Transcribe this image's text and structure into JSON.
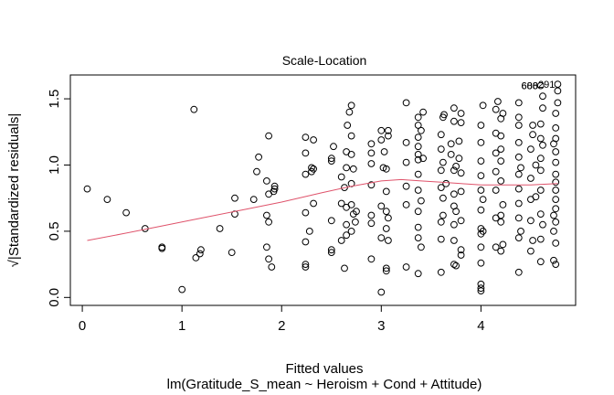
{
  "chart_data": {
    "type": "scatter",
    "title": "Scale-Location",
    "xlabel": "Fitted values",
    "subtitle": "lm(Gratitude_S_mean ~ Heroism + Cond + Attitude)",
    "ylabel": "√|Standardized residuals|",
    "xlim": [
      -0.12,
      4.95
    ],
    "ylim": [
      -0.06,
      1.68
    ],
    "x_ticks": [
      0,
      1,
      2,
      3,
      4
    ],
    "y_ticks": [
      0.0,
      0.5,
      1.0,
      1.5
    ],
    "x_tick_labels": [
      "0",
      "1",
      "2",
      "3",
      "4"
    ],
    "y_tick_labels": [
      "0.0",
      "0.5",
      "1.0",
      "1.5"
    ],
    "grid": false,
    "smoother_color": "#DF536B",
    "point_color": "#000000",
    "smoother": [
      [
        0.05,
        0.43
      ],
      [
        0.4,
        0.48
      ],
      [
        0.8,
        0.54
      ],
      [
        1.2,
        0.6
      ],
      [
        1.6,
        0.66
      ],
      [
        2.0,
        0.72
      ],
      [
        2.4,
        0.79
      ],
      [
        2.7,
        0.84
      ],
      [
        3.0,
        0.88
      ],
      [
        3.2,
        0.89
      ],
      [
        3.4,
        0.88
      ],
      [
        3.6,
        0.87
      ],
      [
        3.8,
        0.86
      ],
      [
        4.0,
        0.85
      ],
      [
        4.2,
        0.85
      ],
      [
        4.5,
        0.85
      ],
      [
        4.77,
        0.86
      ]
    ],
    "outlier_labels": [
      {
        "x": 4.6,
        "y": 1.6,
        "label": "606"
      },
      {
        "x": 4.6,
        "y": 1.6,
        "label": "688"
      },
      {
        "x": 4.77,
        "y": 1.61,
        "label": "291"
      }
    ],
    "points": [
      [
        0.05,
        0.82
      ],
      [
        0.25,
        0.74
      ],
      [
        0.44,
        0.64
      ],
      [
        0.63,
        0.52
      ],
      [
        0.8,
        0.37
      ],
      [
        0.8,
        0.38
      ],
      [
        1.0,
        0.06
      ],
      [
        1.12,
        1.42
      ],
      [
        1.14,
        0.3
      ],
      [
        1.18,
        0.33
      ],
      [
        1.19,
        0.36
      ],
      [
        1.38,
        0.52
      ],
      [
        1.5,
        0.34
      ],
      [
        1.53,
        0.63
      ],
      [
        1.53,
        0.75
      ],
      [
        1.72,
        0.74
      ],
      [
        1.75,
        0.95
      ],
      [
        1.77,
        1.06
      ],
      [
        1.85,
        0.88
      ],
      [
        1.85,
        0.62
      ],
      [
        1.87,
        0.57
      ],
      [
        1.85,
        0.38
      ],
      [
        1.87,
        0.29
      ],
      [
        1.87,
        0.78
      ],
      [
        1.87,
        1.22
      ],
      [
        1.92,
        0.8
      ],
      [
        1.93,
        0.84
      ],
      [
        1.93,
        0.82
      ],
      [
        1.9,
        0.23
      ],
      [
        2.24,
        0.23
      ],
      [
        2.24,
        0.25
      ],
      [
        2.24,
        0.42
      ],
      [
        2.24,
        0.64
      ],
      [
        2.24,
        0.93
      ],
      [
        2.24,
        1.09
      ],
      [
        2.24,
        1.21
      ],
      [
        2.28,
        0.5
      ],
      [
        2.3,
        0.95
      ],
      [
        2.3,
        0.98
      ],
      [
        2.32,
        0.97
      ],
      [
        2.32,
        1.19
      ],
      [
        2.32,
        0.71
      ],
      [
        2.5,
        0.34
      ],
      [
        2.5,
        0.36
      ],
      [
        2.5,
        0.58
      ],
      [
        2.5,
        1.03
      ],
      [
        2.5,
        1.05
      ],
      [
        2.52,
        1.14
      ],
      [
        2.6,
        0.91
      ],
      [
        2.6,
        0.71
      ],
      [
        2.6,
        0.43
      ],
      [
        2.63,
        0.22
      ],
      [
        2.63,
        0.83
      ],
      [
        2.65,
        0.68
      ],
      [
        2.65,
        0.47
      ],
      [
        2.65,
        0.55
      ],
      [
        2.65,
        1.1
      ],
      [
        2.65,
        0.98
      ],
      [
        2.66,
        1.3
      ],
      [
        2.68,
        1.4
      ],
      [
        2.7,
        1.45
      ],
      [
        2.7,
        1.22
      ],
      [
        2.7,
        1.08
      ],
      [
        2.7,
        0.86
      ],
      [
        2.7,
        0.7
      ],
      [
        2.7,
        0.5
      ],
      [
        2.72,
        0.97
      ],
      [
        2.72,
        0.63
      ],
      [
        2.75,
        0.65
      ],
      [
        2.74,
        0.57
      ],
      [
        2.9,
        0.29
      ],
      [
        2.9,
        0.56
      ],
      [
        2.9,
        0.62
      ],
      [
        2.9,
        0.85
      ],
      [
        2.9,
        1.01
      ],
      [
        2.9,
        1.16
      ],
      [
        2.9,
        1.09
      ],
      [
        3.0,
        0.04
      ],
      [
        3.0,
        0.45
      ],
      [
        3.0,
        0.69
      ],
      [
        3.0,
        1.19
      ],
      [
        3.0,
        1.26
      ],
      [
        3.02,
        0.98
      ],
      [
        3.03,
        1.1
      ],
      [
        3.05,
        0.2
      ],
      [
        3.05,
        0.22
      ],
      [
        3.05,
        0.52
      ],
      [
        3.05,
        0.65
      ],
      [
        3.05,
        0.8
      ],
      [
        3.05,
        0.97
      ],
      [
        3.07,
        1.22
      ],
      [
        3.07,
        1.26
      ],
      [
        3.07,
        0.6
      ],
      [
        3.07,
        0.43
      ],
      [
        3.25,
        0.23
      ],
      [
        3.25,
        0.7
      ],
      [
        3.25,
        0.84
      ],
      [
        3.25,
        1.02
      ],
      [
        3.25,
        1.17
      ],
      [
        3.25,
        1.47
      ],
      [
        3.37,
        0.18
      ],
      [
        3.37,
        0.45
      ],
      [
        3.37,
        0.53
      ],
      [
        3.37,
        0.65
      ],
      [
        3.37,
        0.81
      ],
      [
        3.37,
        0.93
      ],
      [
        3.37,
        1.04
      ],
      [
        3.37,
        1.08
      ],
      [
        3.37,
        1.14
      ],
      [
        3.37,
        1.21
      ],
      [
        3.37,
        1.3
      ],
      [
        3.37,
        1.36
      ],
      [
        3.4,
        0.38
      ],
      [
        3.4,
        0.73
      ],
      [
        3.4,
        1.26
      ],
      [
        3.42,
        1.4
      ],
      [
        3.42,
        1.05
      ],
      [
        3.6,
        0.19
      ],
      [
        3.6,
        0.44
      ],
      [
        3.6,
        0.57
      ],
      [
        3.6,
        0.83
      ],
      [
        3.6,
        0.96
      ],
      [
        3.6,
        1.12
      ],
      [
        3.6,
        1.23
      ],
      [
        3.62,
        1.36
      ],
      [
        3.62,
        1.02
      ],
      [
        3.62,
        0.62
      ],
      [
        3.62,
        0.75
      ],
      [
        3.63,
        1.38
      ],
      [
        3.65,
        0.86
      ],
      [
        3.7,
        1.08
      ],
      [
        3.7,
        1.16
      ],
      [
        3.73,
        0.25
      ],
      [
        3.73,
        0.43
      ],
      [
        3.73,
        0.55
      ],
      [
        3.73,
        0.69
      ],
      [
        3.73,
        0.78
      ],
      [
        3.73,
        0.96
      ],
      [
        3.73,
        1.33
      ],
      [
        3.73,
        1.43
      ],
      [
        3.75,
        0.24
      ],
      [
        3.75,
        0.65
      ],
      [
        3.75,
        0.99
      ],
      [
        3.78,
        1.05
      ],
      [
        3.78,
        1.18
      ],
      [
        3.8,
        0.36
      ],
      [
        3.8,
        0.32
      ],
      [
        3.8,
        0.58
      ],
      [
        3.8,
        0.8
      ],
      [
        3.8,
        1.39
      ],
      [
        3.8,
        1.32
      ],
      [
        3.8,
        0.94
      ],
      [
        4.0,
        0.05
      ],
      [
        4.0,
        0.07
      ],
      [
        4.0,
        0.1
      ],
      [
        4.0,
        0.26
      ],
      [
        4.0,
        0.38
      ],
      [
        4.0,
        0.48
      ],
      [
        4.0,
        0.52
      ],
      [
        4.0,
        0.66
      ],
      [
        4.0,
        0.81
      ],
      [
        4.0,
        0.92
      ],
      [
        4.0,
        1.03
      ],
      [
        4.0,
        1.17
      ],
      [
        4.0,
        1.3
      ],
      [
        4.02,
        1.45
      ],
      [
        4.02,
        0.74
      ],
      [
        4.02,
        0.5
      ],
      [
        4.15,
        0.38
      ],
      [
        4.15,
        0.6
      ],
      [
        4.15,
        0.81
      ],
      [
        4.15,
        0.95
      ],
      [
        4.15,
        1.09
      ],
      [
        4.15,
        1.24
      ],
      [
        4.15,
        1.42
      ],
      [
        4.17,
        1.48
      ],
      [
        4.2,
        0.35
      ],
      [
        4.2,
        0.57
      ],
      [
        4.2,
        0.62
      ],
      [
        4.2,
        0.88
      ],
      [
        4.2,
        1.03
      ],
      [
        4.2,
        1.12
      ],
      [
        4.2,
        1.22
      ],
      [
        4.2,
        1.35
      ],
      [
        4.22,
        1.39
      ],
      [
        4.22,
        0.4
      ],
      [
        4.22,
        0.7
      ],
      [
        4.38,
        0.19
      ],
      [
        4.38,
        0.45
      ],
      [
        4.38,
        0.6
      ],
      [
        4.38,
        0.71
      ],
      [
        4.38,
        0.82
      ],
      [
        4.38,
        0.93
      ],
      [
        4.38,
        1.06
      ],
      [
        4.38,
        1.17
      ],
      [
        4.38,
        1.3
      ],
      [
        4.38,
        1.36
      ],
      [
        4.38,
        1.47
      ],
      [
        4.4,
        0.5
      ],
      [
        4.4,
        0.98
      ],
      [
        4.5,
        0.35
      ],
      [
        4.5,
        0.58
      ],
      [
        4.5,
        0.74
      ],
      [
        4.5,
        0.9
      ],
      [
        4.5,
        1.12
      ],
      [
        4.52,
        1.23
      ],
      [
        4.52,
        1.3
      ],
      [
        4.52,
        0.43
      ],
      [
        4.55,
        0.76
      ],
      [
        4.55,
        1.0
      ],
      [
        4.6,
        0.27
      ],
      [
        4.6,
        0.44
      ],
      [
        4.6,
        0.63
      ],
      [
        4.6,
        0.81
      ],
      [
        4.6,
        0.96
      ],
      [
        4.6,
        1.05
      ],
      [
        4.6,
        1.2
      ],
      [
        4.6,
        1.31
      ],
      [
        4.62,
        1.43
      ],
      [
        4.62,
        1.52
      ],
      [
        4.6,
        1.6
      ],
      [
        4.62,
        0.55
      ],
      [
        4.62,
        1.15
      ],
      [
        4.75,
        0.25
      ],
      [
        4.75,
        0.41
      ],
      [
        4.75,
        0.57
      ],
      [
        4.75,
        0.67
      ],
      [
        4.75,
        0.74
      ],
      [
        4.75,
        0.81
      ],
      [
        4.75,
        0.87
      ],
      [
        4.75,
        0.93
      ],
      [
        4.75,
        1.02
      ],
      [
        4.75,
        1.1
      ],
      [
        4.75,
        1.2
      ],
      [
        4.75,
        1.28
      ],
      [
        4.75,
        1.39
      ],
      [
        4.77,
        1.47
      ],
      [
        4.77,
        1.56
      ],
      [
        4.77,
        1.61
      ],
      [
        4.73,
        0.62
      ],
      [
        4.73,
        1.16
      ],
      [
        4.73,
        0.5
      ],
      [
        4.73,
        0.28
      ]
    ]
  }
}
